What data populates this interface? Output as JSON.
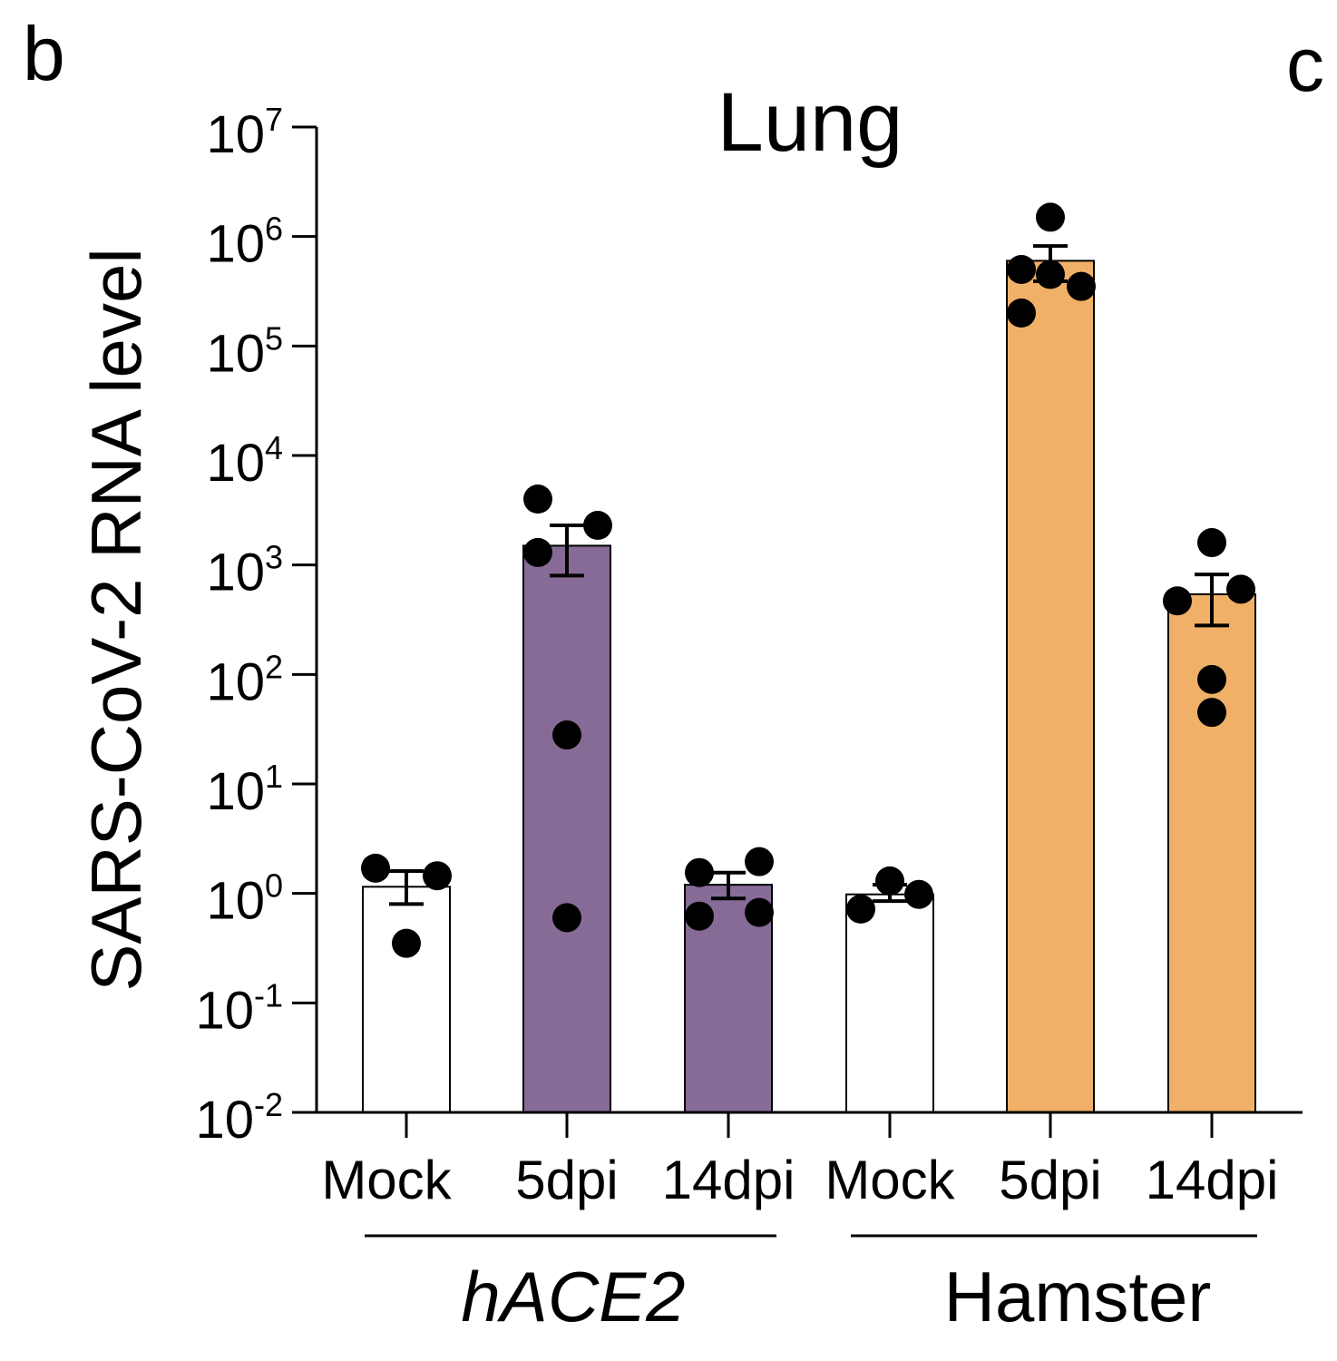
{
  "panel_labels": [
    "b",
    "c"
  ],
  "chart_data": {
    "type": "bar",
    "title": "Lung",
    "ylabel": "SARS-CoV-2 RNA level",
    "yscale": "log",
    "ylim": [
      0.01,
      10000000
    ],
    "ytick_labels": [
      {
        "base": "10",
        "exp": "-2"
      },
      {
        "base": "10",
        "exp": "-1"
      },
      {
        "base": "10",
        "exp": "0"
      },
      {
        "base": "10",
        "exp": "1"
      },
      {
        "base": "10",
        "exp": "2"
      },
      {
        "base": "10",
        "exp": "3"
      },
      {
        "base": "10",
        "exp": "4"
      },
      {
        "base": "10",
        "exp": "5"
      },
      {
        "base": "10",
        "exp": "6"
      },
      {
        "base": "10",
        "exp": "7"
      }
    ],
    "groups": [
      {
        "label": "hACE2",
        "italic": true
      },
      {
        "label": "Hamster",
        "italic": false
      }
    ],
    "bars": [
      {
        "label": "Mock",
        "group": 0,
        "value": 1.15,
        "err": [
          0.8,
          1.6
        ],
        "color": "#ffffff",
        "points": [
          1.7,
          1.45,
          0.35
        ]
      },
      {
        "label": "5dpi",
        "group": 0,
        "value": 1500,
        "err": [
          800,
          2300
        ],
        "color": "#876b97",
        "points": [
          4000,
          2300,
          1300,
          28,
          0.6
        ]
      },
      {
        "label": "14dpi",
        "group": 0,
        "value": 1.2,
        "err": [
          0.9,
          1.55
        ],
        "color": "#876b97",
        "points": [
          1.55,
          1.95,
          0.62,
          0.67
        ]
      },
      {
        "label": "Mock",
        "group": 1,
        "value": 0.98,
        "err": [
          0.85,
          1.2
        ],
        "color": "#ffffff",
        "points": [
          0.72,
          1.3,
          0.98
        ]
      },
      {
        "label": "5dpi",
        "group": 1,
        "value": 600000,
        "err": [
          390000,
          820000
        ],
        "color": "#f1b067",
        "points": [
          1500000,
          500000,
          450000,
          350000,
          200000
        ]
      },
      {
        "label": "14dpi",
        "group": 1,
        "value": 540,
        "err": [
          280,
          820
        ],
        "color": "#f1b067",
        "points": [
          1600,
          470,
          600,
          90,
          45
        ]
      }
    ]
  }
}
